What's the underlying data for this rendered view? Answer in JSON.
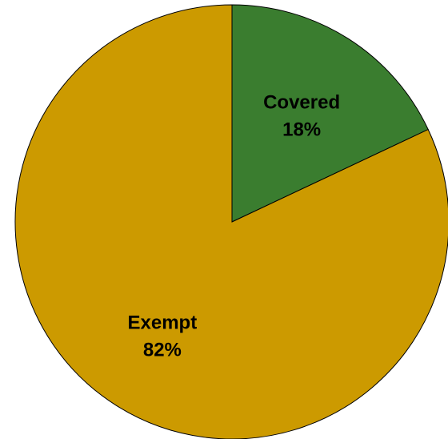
{
  "chart_data": {
    "type": "pie",
    "title": "",
    "slices": [
      {
        "label": "Covered",
        "value": 18,
        "display": "18%",
        "color": "#3a7d2f"
      },
      {
        "label": "Exempt",
        "value": 82,
        "display": "82%",
        "color": "#cc9a00"
      }
    ],
    "start_angle_deg": 0,
    "direction": "clockwise",
    "legend": "none"
  }
}
